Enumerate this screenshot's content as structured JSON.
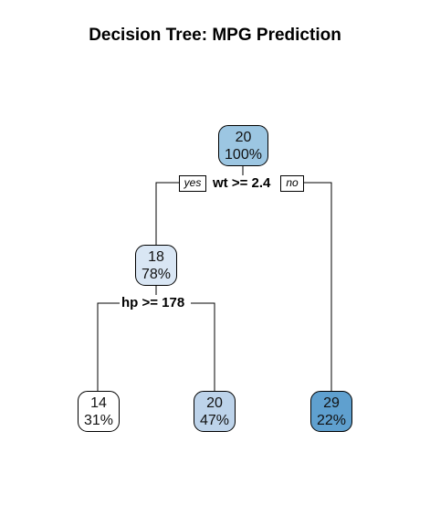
{
  "title": "Decision Tree: MPG Prediction",
  "root": {
    "value": "20",
    "percent": "100%",
    "color": "#9cc6e2"
  },
  "split_root": {
    "label": "wt >= 2.4",
    "yes": "yes",
    "no": "no"
  },
  "left": {
    "value": "18",
    "percent": "78%",
    "color": "#d9e6f4"
  },
  "split_left": {
    "label": "hp >= 178"
  },
  "leaf_ll": {
    "value": "14",
    "percent": "31%",
    "color": "#ffffff"
  },
  "leaf_lr": {
    "value": "20",
    "percent": "47%",
    "color": "#bdd3ea"
  },
  "leaf_r": {
    "value": "29",
    "percent": "22%",
    "color": "#5fa0cf"
  }
}
